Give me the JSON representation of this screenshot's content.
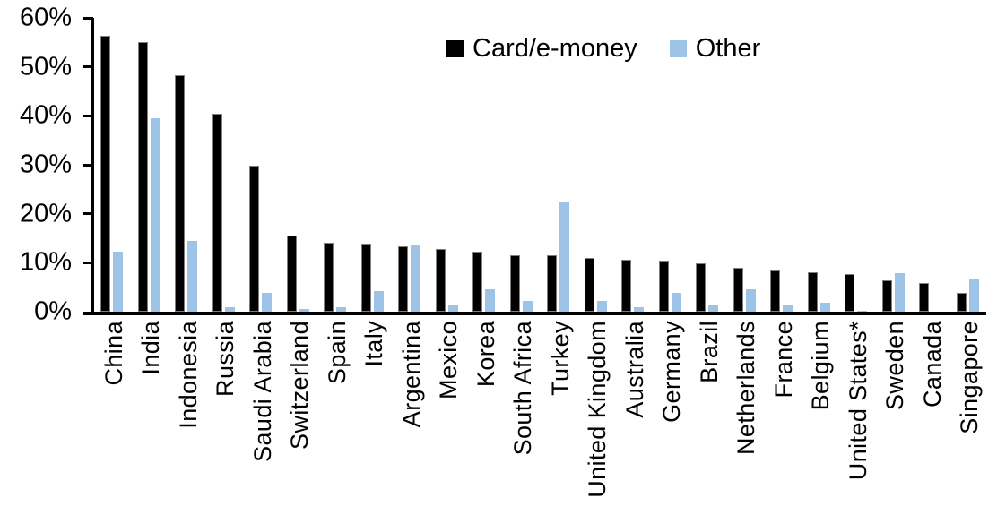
{
  "chart_data": {
    "type": "bar",
    "title": "",
    "xlabel": "",
    "ylabel": "",
    "ylim": [
      0,
      60
    ],
    "ytick_labels": [
      "0%",
      "10%",
      "20%",
      "30%",
      "40%",
      "50%",
      "60%"
    ],
    "ytick_values": [
      0,
      10,
      20,
      30,
      40,
      50,
      60
    ],
    "grid": false,
    "legend_position": "top-center",
    "categories": [
      "China",
      "India",
      "Indonesia",
      "Russia",
      "Saudi Arabia",
      "Switzerland",
      "Spain",
      "Italy",
      "Argentina",
      "Mexico",
      "Korea",
      "South Africa",
      "Turkey",
      "United Kingdom",
      "Australia",
      "Germany",
      "Brazil",
      "Netherlands",
      "France",
      "Belgium",
      "United States*",
      "Sweden",
      "Canada",
      "Singapore"
    ],
    "series": [
      {
        "name": "Card/e-money",
        "color": "#000000",
        "values": [
          56.4,
          55.1,
          48.3,
          40.4,
          29.8,
          15.6,
          14.0,
          13.9,
          13.3,
          12.8,
          12.2,
          11.6,
          11.5,
          10.9,
          10.7,
          10.4,
          9.9,
          9.0,
          8.4,
          8.0,
          7.6,
          6.4,
          5.8,
          3.9
        ]
      },
      {
        "name": "Other",
        "color": "#9dc3e6",
        "values": [
          12.3,
          39.6,
          14.5,
          1.0,
          3.9,
          0.6,
          0.9,
          4.2,
          13.8,
          1.2,
          4.6,
          2.2,
          22.3,
          2.2,
          0.9,
          3.9,
          1.2,
          4.6,
          1.5,
          1.9,
          0.25,
          7.9,
          0,
          6.5
        ]
      }
    ]
  },
  "colors": {
    "background": "#ffffff",
    "axis": "#000000",
    "text": "#000000",
    "series_card": "#000000",
    "series_other": "#9dc3e6"
  }
}
